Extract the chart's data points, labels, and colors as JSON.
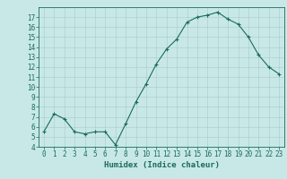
{
  "x": [
    0,
    1,
    2,
    3,
    4,
    5,
    6,
    7,
    8,
    9,
    10,
    11,
    12,
    13,
    14,
    15,
    16,
    17,
    18,
    19,
    20,
    21,
    22,
    23
  ],
  "y": [
    5.5,
    7.3,
    6.8,
    5.5,
    5.3,
    5.5,
    5.5,
    4.2,
    6.3,
    8.5,
    10.3,
    12.3,
    13.8,
    14.8,
    16.5,
    17.0,
    17.2,
    17.5,
    16.8,
    16.3,
    15.0,
    13.2,
    12.0,
    11.3
  ],
  "xlabel": "Humidex (Indice chaleur)",
  "xlim": [
    -0.5,
    23.5
  ],
  "ylim": [
    4,
    18
  ],
  "yticks": [
    4,
    5,
    6,
    7,
    8,
    9,
    10,
    11,
    12,
    13,
    14,
    15,
    16,
    17
  ],
  "xticks": [
    0,
    1,
    2,
    3,
    4,
    5,
    6,
    7,
    8,
    9,
    10,
    11,
    12,
    13,
    14,
    15,
    16,
    17,
    18,
    19,
    20,
    21,
    22,
    23
  ],
  "line_color": "#1a6b5a",
  "marker_color": "#1a6b5a",
  "bg_color": "#c8e8e8",
  "grid_color": "#aacaca",
  "axis_color": "#1a6b5a",
  "label_color": "#1a6b5a",
  "font_size_ticks": 5.5,
  "font_size_xlabel": 6.5
}
